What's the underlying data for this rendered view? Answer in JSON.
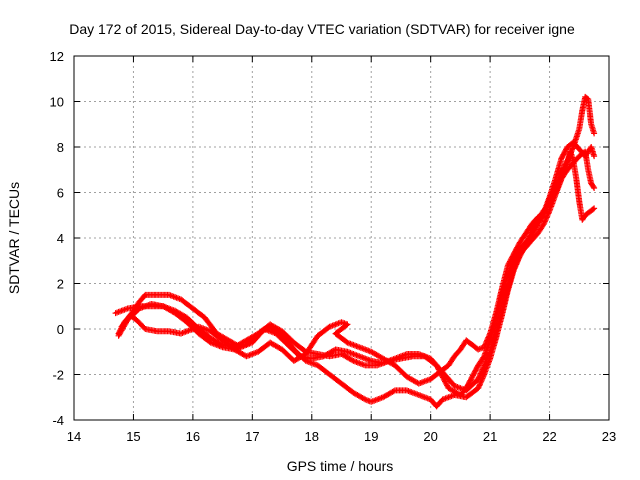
{
  "chart_data": {
    "type": "scatter",
    "title": "Day 172 of 2015, Sidereal Day-to-day VTEC variation (SDTVAR) for receiver igne",
    "xlabel": "GPS time / hours",
    "ylabel": "SDTVAR / TECUs",
    "xlim": [
      14,
      23
    ],
    "ylim": [
      -4,
      12
    ],
    "x_ticks": [
      14,
      15,
      16,
      17,
      18,
      19,
      20,
      21,
      22,
      23
    ],
    "y_ticks": [
      -4,
      -2,
      0,
      2,
      4,
      6,
      8,
      10,
      12
    ],
    "grid": true,
    "marker": "+",
    "color": "#ff0000",
    "series": [
      {
        "name": "satellite-track-1",
        "points": [
          [
            14.75,
            -0.3
          ],
          [
            14.9,
            0.4
          ],
          [
            15.1,
            0.9
          ],
          [
            15.3,
            1.1
          ],
          [
            15.5,
            1.0
          ],
          [
            15.7,
            0.7
          ],
          [
            15.9,
            0.3
          ],
          [
            16.1,
            -0.2
          ],
          [
            16.3,
            -0.6
          ],
          [
            16.5,
            -0.8
          ],
          [
            16.7,
            -0.9
          ],
          [
            16.9,
            -0.7
          ],
          [
            17.1,
            -0.2
          ],
          [
            17.3,
            0.2
          ],
          [
            17.5,
            -0.1
          ],
          [
            17.7,
            -0.6
          ],
          [
            17.9,
            -1.0
          ],
          [
            18.1,
            -1.1
          ],
          [
            18.3,
            -1.2
          ],
          [
            18.5,
            -1.1
          ],
          [
            18.7,
            -1.4
          ],
          [
            18.9,
            -1.6
          ],
          [
            19.1,
            -1.6
          ],
          [
            19.3,
            -1.4
          ],
          [
            19.5,
            -1.3
          ],
          [
            19.7,
            -1.2
          ],
          [
            19.9,
            -1.2
          ],
          [
            20.1,
            -1.6
          ],
          [
            20.3,
            -2.6
          ],
          [
            20.5,
            -2.9
          ],
          [
            20.6,
            -2.6
          ],
          [
            20.7,
            -2.1
          ],
          [
            20.8,
            -1.6
          ],
          [
            20.9,
            -1.2
          ],
          [
            21.0,
            -0.5
          ],
          [
            21.1,
            0.5
          ],
          [
            21.2,
            1.5
          ],
          [
            21.3,
            2.4
          ],
          [
            21.4,
            3.1
          ],
          [
            21.5,
            3.5
          ],
          [
            21.6,
            3.8
          ],
          [
            21.7,
            4.1
          ],
          [
            21.8,
            4.6
          ],
          [
            21.9,
            5.0
          ],
          [
            22.0,
            5.7
          ],
          [
            22.1,
            6.3
          ],
          [
            22.2,
            6.9
          ],
          [
            22.3,
            7.4
          ],
          [
            22.4,
            8.0
          ],
          [
            22.5,
            8.8
          ],
          [
            22.55,
            9.6
          ],
          [
            22.6,
            10.2
          ],
          [
            22.65,
            10.1
          ],
          [
            22.7,
            9.0
          ],
          [
            22.75,
            8.6
          ]
        ]
      },
      {
        "name": "satellite-track-2",
        "points": [
          [
            14.8,
            0.1
          ],
          [
            15.0,
            0.8
          ],
          [
            15.1,
            1.2
          ],
          [
            15.2,
            1.5
          ],
          [
            15.4,
            1.5
          ],
          [
            15.6,
            1.5
          ],
          [
            15.8,
            1.3
          ],
          [
            16.0,
            0.9
          ],
          [
            16.2,
            0.5
          ],
          [
            16.4,
            -0.2
          ],
          [
            16.6,
            -0.5
          ],
          [
            16.8,
            -0.8
          ],
          [
            17.0,
            -0.6
          ],
          [
            17.2,
            0.0
          ],
          [
            17.4,
            -0.2
          ],
          [
            17.6,
            -0.7
          ],
          [
            17.8,
            -1.2
          ],
          [
            18.0,
            -1.3
          ],
          [
            18.2,
            -1.2
          ],
          [
            18.4,
            -0.9
          ],
          [
            18.6,
            -1.0
          ],
          [
            18.8,
            -1.2
          ],
          [
            19.0,
            -1.4
          ],
          [
            19.2,
            -1.5
          ],
          [
            19.4,
            -1.3
          ],
          [
            19.6,
            -1.1
          ],
          [
            19.8,
            -1.1
          ],
          [
            20.0,
            -1.3
          ],
          [
            20.2,
            -1.9
          ],
          [
            20.4,
            -2.5
          ],
          [
            20.6,
            -2.7
          ],
          [
            20.8,
            -2.2
          ],
          [
            20.9,
            -1.6
          ],
          [
            21.0,
            -1.0
          ],
          [
            21.1,
            -0.2
          ],
          [
            21.2,
            0.8
          ],
          [
            21.3,
            1.8
          ],
          [
            21.4,
            2.7
          ],
          [
            21.5,
            3.3
          ],
          [
            21.6,
            3.6
          ],
          [
            21.7,
            3.9
          ],
          [
            21.8,
            4.2
          ],
          [
            21.9,
            4.6
          ],
          [
            22.0,
            5.2
          ],
          [
            22.1,
            5.9
          ],
          [
            22.2,
            6.6
          ],
          [
            22.3,
            7.3
          ],
          [
            22.35,
            7.8
          ],
          [
            22.4,
            7.4
          ],
          [
            22.45,
            6.6
          ],
          [
            22.5,
            5.6
          ],
          [
            22.55,
            4.8
          ],
          [
            22.6,
            5.0
          ],
          [
            22.7,
            5.2
          ],
          [
            22.75,
            5.3
          ]
        ]
      },
      {
        "name": "satellite-track-3",
        "points": [
          [
            14.7,
            0.7
          ],
          [
            14.9,
            0.9
          ],
          [
            15.1,
            1.0
          ],
          [
            15.3,
            1.0
          ],
          [
            15.5,
            1.0
          ],
          [
            15.7,
            0.8
          ],
          [
            15.9,
            0.5
          ],
          [
            16.1,
            0.0
          ],
          [
            16.3,
            -0.4
          ],
          [
            16.5,
            -0.7
          ],
          [
            16.7,
            -0.8
          ],
          [
            16.9,
            -0.5
          ],
          [
            17.1,
            -0.2
          ],
          [
            17.3,
            0.1
          ],
          [
            17.5,
            -0.3
          ],
          [
            17.7,
            -0.9
          ],
          [
            17.9,
            -1.4
          ],
          [
            18.1,
            -1.6
          ],
          [
            18.3,
            -2.0
          ],
          [
            18.5,
            -2.4
          ],
          [
            18.7,
            -2.8
          ],
          [
            18.9,
            -3.1
          ],
          [
            19.0,
            -3.2
          ],
          [
            19.2,
            -3.0
          ],
          [
            19.4,
            -2.7
          ],
          [
            19.6,
            -2.7
          ],
          [
            19.8,
            -2.9
          ],
          [
            20.0,
            -3.1
          ],
          [
            20.1,
            -3.4
          ],
          [
            20.2,
            -3.1
          ],
          [
            20.4,
            -2.9
          ],
          [
            20.6,
            -3.0
          ],
          [
            20.8,
            -2.6
          ],
          [
            20.9,
            -2.0
          ],
          [
            21.0,
            -1.3
          ],
          [
            21.1,
            -0.4
          ],
          [
            21.2,
            0.6
          ],
          [
            21.3,
            1.7
          ],
          [
            21.4,
            2.6
          ],
          [
            21.5,
            3.2
          ],
          [
            21.6,
            3.7
          ],
          [
            21.7,
            4.3
          ],
          [
            21.8,
            4.8
          ],
          [
            21.9,
            5.2
          ],
          [
            22.0,
            5.5
          ],
          [
            22.1,
            6.0
          ],
          [
            22.2,
            6.6
          ],
          [
            22.3,
            7.0
          ],
          [
            22.4,
            7.3
          ],
          [
            22.5,
            7.6
          ],
          [
            22.6,
            7.8
          ],
          [
            22.65,
            7.0
          ],
          [
            22.7,
            6.4
          ],
          [
            22.75,
            6.2
          ]
        ]
      },
      {
        "name": "satellite-track-4",
        "points": [
          [
            14.75,
            -0.2
          ],
          [
            14.85,
            0.3
          ],
          [
            14.95,
            0.6
          ],
          [
            15.05,
            0.4
          ],
          [
            15.2,
            0.0
          ],
          [
            15.4,
            -0.1
          ],
          [
            15.6,
            -0.1
          ],
          [
            15.8,
            -0.2
          ],
          [
            15.9,
            -0.1
          ],
          [
            16.1,
            0.1
          ],
          [
            16.3,
            -0.1
          ],
          [
            16.5,
            -0.5
          ],
          [
            16.7,
            -0.9
          ],
          [
            16.9,
            -1.2
          ],
          [
            17.1,
            -1.0
          ],
          [
            17.3,
            -0.6
          ],
          [
            17.5,
            -0.9
          ],
          [
            17.7,
            -1.4
          ],
          [
            17.9,
            -1.1
          ],
          [
            18.1,
            -0.3
          ],
          [
            18.3,
            0.1
          ],
          [
            18.5,
            0.3
          ],
          [
            18.6,
            0.2
          ],
          [
            18.4,
            -0.2
          ],
          [
            18.6,
            -0.6
          ],
          [
            18.8,
            -0.8
          ],
          [
            19.0,
            -1.0
          ],
          [
            19.2,
            -1.3
          ],
          [
            19.4,
            -1.6
          ],
          [
            19.6,
            -2.1
          ],
          [
            19.8,
            -2.4
          ],
          [
            20.0,
            -2.2
          ],
          [
            20.2,
            -1.8
          ],
          [
            20.3,
            -1.6
          ],
          [
            20.4,
            -1.2
          ],
          [
            20.5,
            -0.9
          ],
          [
            20.6,
            -0.5
          ],
          [
            20.7,
            -0.7
          ],
          [
            20.8,
            -0.9
          ],
          [
            20.9,
            -0.8
          ],
          [
            21.0,
            -0.2
          ],
          [
            21.1,
            0.7
          ],
          [
            21.2,
            1.8
          ],
          [
            21.3,
            2.8
          ],
          [
            21.4,
            3.3
          ],
          [
            21.5,
            3.8
          ],
          [
            21.6,
            4.2
          ],
          [
            21.7,
            4.6
          ],
          [
            21.8,
            4.9
          ],
          [
            21.9,
            5.1
          ],
          [
            22.0,
            5.8
          ],
          [
            22.1,
            6.6
          ],
          [
            22.2,
            7.5
          ],
          [
            22.3,
            8.0
          ],
          [
            22.4,
            8.2
          ],
          [
            22.5,
            7.9
          ],
          [
            22.6,
            7.6
          ],
          [
            22.7,
            8.0
          ],
          [
            22.75,
            7.6
          ]
        ]
      }
    ]
  }
}
